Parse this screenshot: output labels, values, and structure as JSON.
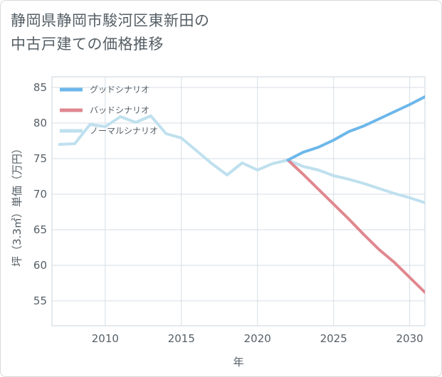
{
  "title": {
    "line1": "静岡県静岡市駿河区東新田の",
    "line2": "中古戸建ての価格推移"
  },
  "chart_data": {
    "type": "line",
    "title": "静岡県静岡市駿河区東新田の中古戸建ての価格推移",
    "xlabel": "年",
    "ylabel": "坪（3.3㎡）単価（万円）",
    "xlim": [
      2006.5,
      2031
    ],
    "ylim": [
      51.5,
      86.5
    ],
    "xticks": [
      2010,
      2015,
      2020,
      2025,
      2030
    ],
    "yticks": [
      55,
      60,
      65,
      70,
      75,
      80,
      85
    ],
    "grid": true,
    "legend_position": "top-left",
    "series": [
      {
        "name": "グッドシナリオ",
        "color": "#6cb7ea",
        "x": [
          2022,
          2023,
          2024,
          2025,
          2026,
          2027,
          2028,
          2029,
          2030,
          2031
        ],
        "y": [
          74.8,
          75.9,
          76.6,
          77.6,
          78.8,
          79.6,
          80.6,
          81.6,
          82.6,
          83.7
        ]
      },
      {
        "name": "バッドシナリオ",
        "color": "#e0878f",
        "x": [
          2022,
          2023,
          2024,
          2025,
          2026,
          2027,
          2028,
          2029,
          2030,
          2031
        ],
        "y": [
          74.8,
          72.8,
          70.7,
          68.6,
          66.5,
          64.3,
          62.2,
          60.4,
          58.3,
          56.2
        ]
      },
      {
        "name": "ノーマルシナリオ",
        "color": "#bfe0ee",
        "x": [
          2007,
          2008,
          2009,
          2010,
          2011,
          2012,
          2013,
          2014,
          2015,
          2016,
          2017,
          2018,
          2019,
          2020,
          2021,
          2022,
          2023,
          2024,
          2025,
          2026,
          2027,
          2028,
          2029,
          2030,
          2031
        ],
        "y": [
          77.0,
          77.1,
          79.8,
          79.5,
          80.9,
          80.1,
          81.0,
          78.5,
          77.9,
          76.1,
          74.3,
          72.7,
          74.4,
          73.4,
          74.3,
          74.8,
          73.9,
          73.4,
          72.6,
          72.1,
          71.5,
          70.8,
          70.1,
          69.5,
          68.8
        ]
      }
    ]
  }
}
